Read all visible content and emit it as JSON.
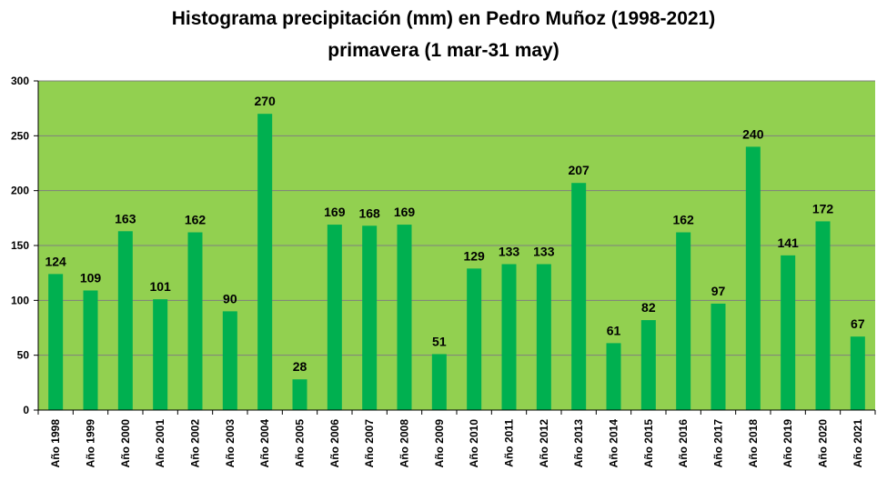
{
  "chart_data": {
    "type": "bar",
    "title": "Histograma precipitación (mm) en Pedro Muñoz (1998-2021)",
    "subtitle": "primavera (1 mar-31 may)",
    "xlabel": "",
    "ylabel": "",
    "ylim": [
      0,
      300
    ],
    "yticks": [
      0,
      50,
      100,
      150,
      200,
      250,
      300
    ],
    "grid": true,
    "legend": "none",
    "categories": [
      "Año 1998",
      "Año 1999",
      "Año 2000",
      "Año 2001",
      "Año 2002",
      "Año 2003",
      "Año 2004",
      "Año 2005",
      "Año 2006",
      "Año 2007",
      "Año 2008",
      "Año 2009",
      "Año 2010",
      "Año 2011",
      "Año 2012",
      "Año 2013",
      "Año 2014",
      "Año 2015",
      "Año 2016",
      "Año 2017",
      "Año 2018",
      "Año 2019",
      "Año 2020",
      "Año 2021"
    ],
    "values": [
      124,
      109,
      163,
      101,
      162,
      90,
      270,
      28,
      169,
      168,
      169,
      51,
      129,
      133,
      133,
      207,
      61,
      82,
      162,
      97,
      240,
      141,
      172,
      67
    ],
    "colors": {
      "plot_background": "#92D050",
      "bar": "#00B050",
      "grid": "#7f7f7f",
      "axis": "#000000"
    }
  }
}
